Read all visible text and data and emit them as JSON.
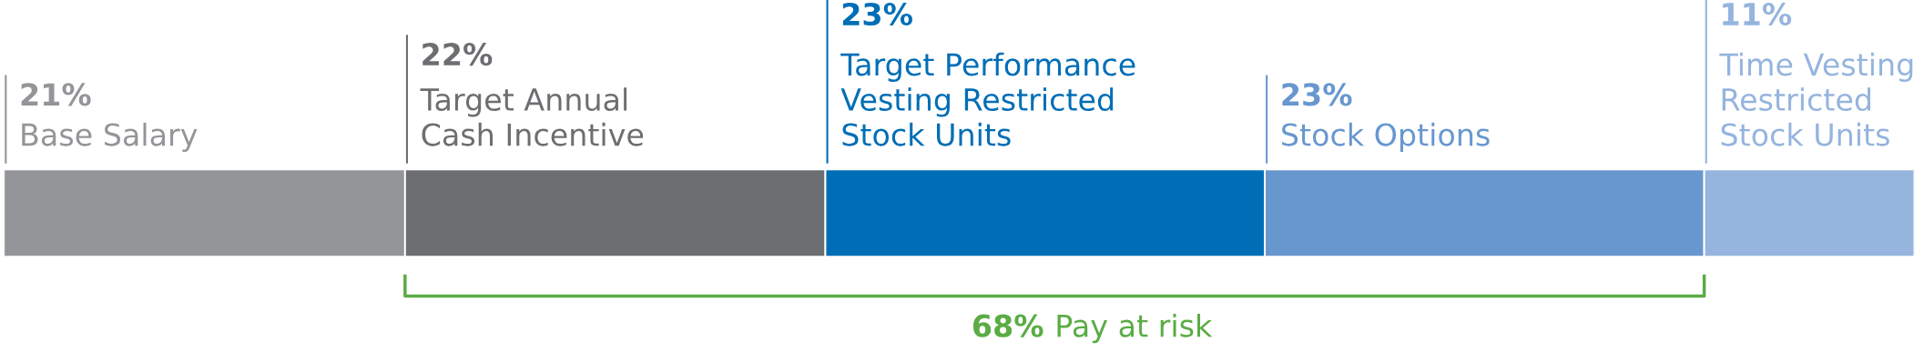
{
  "chart_data": {
    "type": "bar",
    "orientation": "horizontal",
    "stacked": true,
    "categories": [
      null
    ],
    "series": [
      {
        "name": "Base Salary",
        "color": "#939598",
        "values": [
          21
        ],
        "value_labels": [
          "21%"
        ]
      },
      {
        "name": "Target Annual\nCash Incentive",
        "color": "#6d6e71",
        "values": [
          22
        ],
        "value_labels": [
          "22%"
        ]
      },
      {
        "name": "Target Performance\nVesting Restricted\nStock Units",
        "color": "#006eb6",
        "values": [
          23
        ],
        "value_labels": [
          "23%"
        ]
      },
      {
        "name": "Stock Options",
        "color": "#6897cf",
        "values": [
          23
        ],
        "value_labels": [
          "23%"
        ]
      },
      {
        "name": "Time Vesting\nRestricted\nStock Units",
        "color": "#95b4de",
        "values": [
          11
        ],
        "value_labels": [
          "11%"
        ]
      }
    ],
    "annotations": [
      "68% Pay at risk"
    ]
  }
}
